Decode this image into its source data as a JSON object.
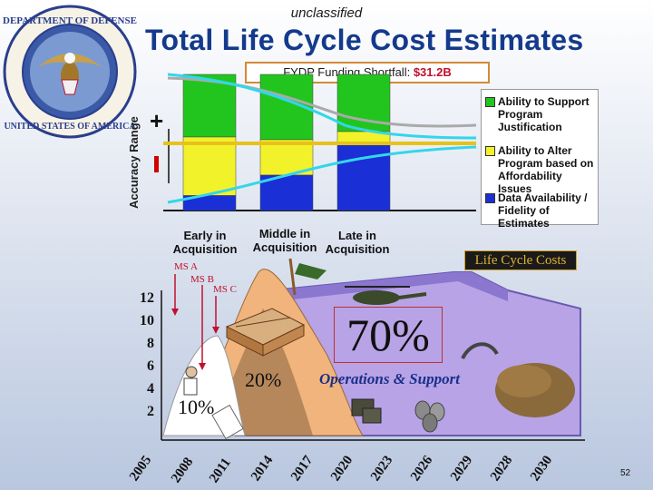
{
  "header": {
    "classification": "unclassified",
    "title": "Total Life Cycle Cost Estimates"
  },
  "funding_box": {
    "label": "FYDP Funding Shortfall:",
    "amount": "$31.2B"
  },
  "accuracy_axis": {
    "label": "Accuracy Range",
    "plus": "+",
    "minus": "-"
  },
  "phases": [
    {
      "line1": "Early in",
      "line2": "Acquisition"
    },
    {
      "line1": "Middle in",
      "line2": "Acquisition"
    },
    {
      "line1": "Late in",
      "line2": "Acquisition"
    }
  ],
  "legend": [
    {
      "label": "Ability to Support Program Justification",
      "color": "#22c51e"
    },
    {
      "label": "Ability to Alter Program based on Affordability Issues",
      "color": "#f2f22a"
    },
    {
      "label": "Data Availability / Fidelity of Estimates",
      "color": "#1a2fd6"
    }
  ],
  "colors": {
    "title": "#143a8c",
    "cyan_curve": "#33d6ea",
    "mountain": "#b7a3e6",
    "orange_peak": "#f0b47c",
    "red_marker": "#c01030"
  },
  "life_cycle": {
    "badge": "Life Cycle Costs",
    "milestones": [
      "MS A",
      "MS B",
      "MS C"
    ],
    "y_ticks": [
      "12",
      "10",
      "8",
      "6",
      "4",
      "2"
    ],
    "x_ticks": [
      "2005",
      "2008",
      "2011",
      "2014",
      "2017",
      "2020",
      "2023",
      "2026",
      "2029",
      "2028",
      "2030"
    ],
    "pct_10": "10%",
    "pct_20": "20%",
    "pct_70": "70%",
    "ops_label": "Operations & Support"
  },
  "chart_data": {
    "type": "bar",
    "categories": [
      "Early in Acquisition",
      "Middle in Acquisition",
      "Late in Acquisition"
    ],
    "series": [
      {
        "name": "Ability to Support Program Justification",
        "values": [
          0.46,
          0.48,
          0.42
        ]
      },
      {
        "name": "Ability to Alter Program based on Affordability Issues",
        "values": [
          0.43,
          0.26,
          0.1
        ]
      },
      {
        "name": "Data Availability / Fidelity of Estimates",
        "values": [
          0.11,
          0.26,
          0.48
        ]
      }
    ],
    "stacked": true,
    "ylabel": "Accuracy Range",
    "ylim": [
      0,
      1
    ]
  },
  "footer": {
    "page": "52"
  }
}
